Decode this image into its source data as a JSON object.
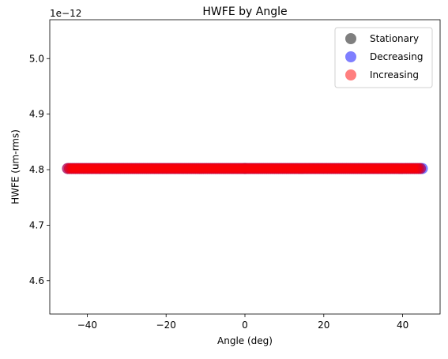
{
  "chart_data": {
    "type": "scatter",
    "title": "HWFE by Angle",
    "xlabel": "Angle (deg)",
    "ylabel": "HWFE (um-rms)",
    "offset_text": "1e−12",
    "xlim": [
      -49.5,
      49.5
    ],
    "ylim": [
      4.54,
      5.07
    ],
    "x_ticks": [
      -40,
      -20,
      0,
      20,
      40
    ],
    "x_tick_labels": [
      "−40",
      "−20",
      "0",
      "20",
      "40"
    ],
    "y_ticks": [
      4.6,
      4.7,
      4.8,
      4.9,
      5.0
    ],
    "y_tick_labels": [
      "4.6",
      "4.7",
      "4.8",
      "4.9",
      "5.0"
    ],
    "grid": false,
    "legend_position": "top-right",
    "series": [
      {
        "name": "Stationary",
        "color": "#000000",
        "alpha": 0.5,
        "points": [
          [
            0.0,
            4.802
          ]
        ]
      },
      {
        "name": "Decreasing",
        "color": "#0000ff",
        "alpha": 0.5,
        "x_range": [
          -45,
          45
        ],
        "y": 4.802
      },
      {
        "name": "Increasing",
        "color": "#ff0000",
        "alpha": 0.5,
        "x_range": [
          -45,
          44.5
        ],
        "y": 4.802
      }
    ]
  }
}
